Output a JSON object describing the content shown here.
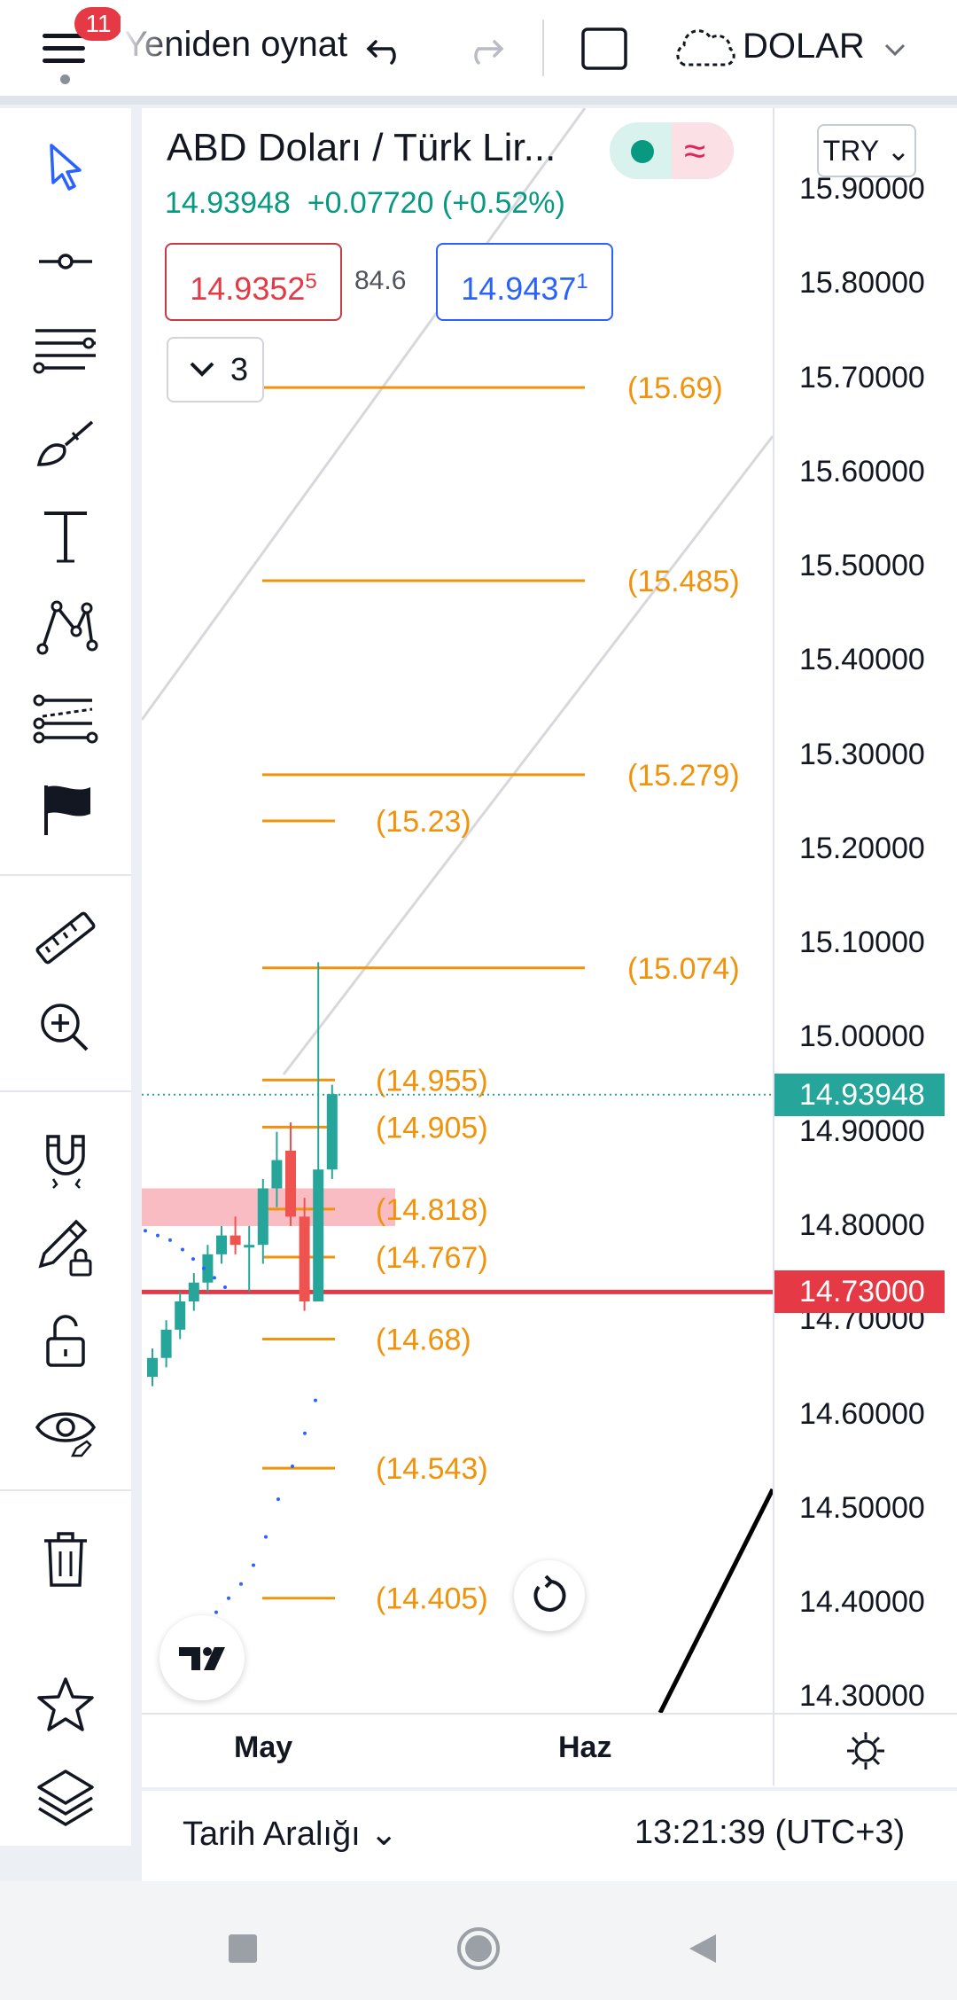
{
  "topbar": {
    "notification_count": "11",
    "replay_label": "Yeniden oynat",
    "symbol_label": "DOLAR"
  },
  "header": {
    "title": "ABD Doları / Türk Lir...",
    "last_price": "14.93948",
    "change": "+0.07720 (+0.52%)",
    "bid_main": "14.9352",
    "bid_sup": "5",
    "spread": "84.6",
    "ask_main": "14.9437",
    "ask_sup": "1",
    "indicator_count": "3",
    "currency": "TRY"
  },
  "price_axis": {
    "ticks": [
      "15.90000",
      "15.80000",
      "15.70000",
      "15.60000",
      "15.50000",
      "15.40000",
      "15.30000",
      "15.20000",
      "15.10000",
      "15.00000",
      "14.90000",
      "14.80000",
      "14.70000",
      "14.60000",
      "14.50000",
      "14.40000",
      "14.30000"
    ],
    "current_price": "14.93948",
    "alert_price": "14.73000"
  },
  "time_axis": {
    "months": [
      "May",
      "Haz"
    ]
  },
  "bottombar": {
    "range_label": "Tarih Aralığı",
    "clock": "13:21:39 (UTC+3)"
  },
  "colors": {
    "up": "#26a69a",
    "down": "#ef5350",
    "fib": "#f0930a",
    "current": "#26a69a",
    "alert": "#e53945",
    "accent": "#2962ff"
  },
  "chart_data": {
    "type": "candlestick",
    "title": "ABD Doları / Türk Lirası",
    "ylim": [
      14.28,
      15.93
    ],
    "fib_levels": [
      {
        "value": 15.69,
        "label": "(15.69)",
        "span": "long"
      },
      {
        "value": 15.485,
        "label": "(15.485)",
        "span": "long"
      },
      {
        "value": 15.279,
        "label": "(15.279)",
        "span": "long"
      },
      {
        "value": 15.23,
        "label": "(15.23)",
        "span": "short"
      },
      {
        "value": 15.074,
        "label": "(15.074)",
        "span": "long"
      },
      {
        "value": 14.955,
        "label": "(14.955)",
        "span": "short"
      },
      {
        "value": 14.905,
        "label": "(14.905)",
        "span": "short"
      },
      {
        "value": 14.818,
        "label": "(14.818)",
        "span": "short"
      },
      {
        "value": 14.767,
        "label": "(14.767)",
        "span": "short"
      },
      {
        "value": 14.68,
        "label": "(14.68)",
        "span": "short"
      },
      {
        "value": 14.543,
        "label": "(14.543)",
        "span": "short"
      },
      {
        "value": 14.405,
        "label": "(14.405)",
        "span": "short"
      }
    ],
    "candles": [
      {
        "o": 14.64,
        "h": 14.67,
        "l": 14.63,
        "c": 14.66
      },
      {
        "o": 14.66,
        "h": 14.7,
        "l": 14.65,
        "c": 14.69
      },
      {
        "o": 14.69,
        "h": 14.73,
        "l": 14.68,
        "c": 14.72
      },
      {
        "o": 14.72,
        "h": 14.75,
        "l": 14.71,
        "c": 14.74
      },
      {
        "o": 14.74,
        "h": 14.78,
        "l": 14.73,
        "c": 14.77
      },
      {
        "o": 14.77,
        "h": 14.8,
        "l": 14.76,
        "c": 14.79
      },
      {
        "o": 14.79,
        "h": 14.81,
        "l": 14.77,
        "c": 14.78
      },
      {
        "o": 14.78,
        "h": 14.8,
        "l": 14.73,
        "c": 14.78
      },
      {
        "o": 14.78,
        "h": 14.85,
        "l": 14.76,
        "c": 14.84
      },
      {
        "o": 14.84,
        "h": 14.9,
        "l": 14.82,
        "c": 14.87
      },
      {
        "o": 14.88,
        "h": 14.91,
        "l": 14.8,
        "c": 14.81
      },
      {
        "o": 14.81,
        "h": 14.83,
        "l": 14.71,
        "c": 14.72
      },
      {
        "o": 14.72,
        "h": 15.08,
        "l": 14.72,
        "c": 14.86
      },
      {
        "o": 14.86,
        "h": 14.95,
        "l": 14.85,
        "c": 14.94
      }
    ],
    "highlight_zone": [
      14.8,
      14.84
    ],
    "current_price": 14.93948,
    "alert_price": 14.73
  }
}
